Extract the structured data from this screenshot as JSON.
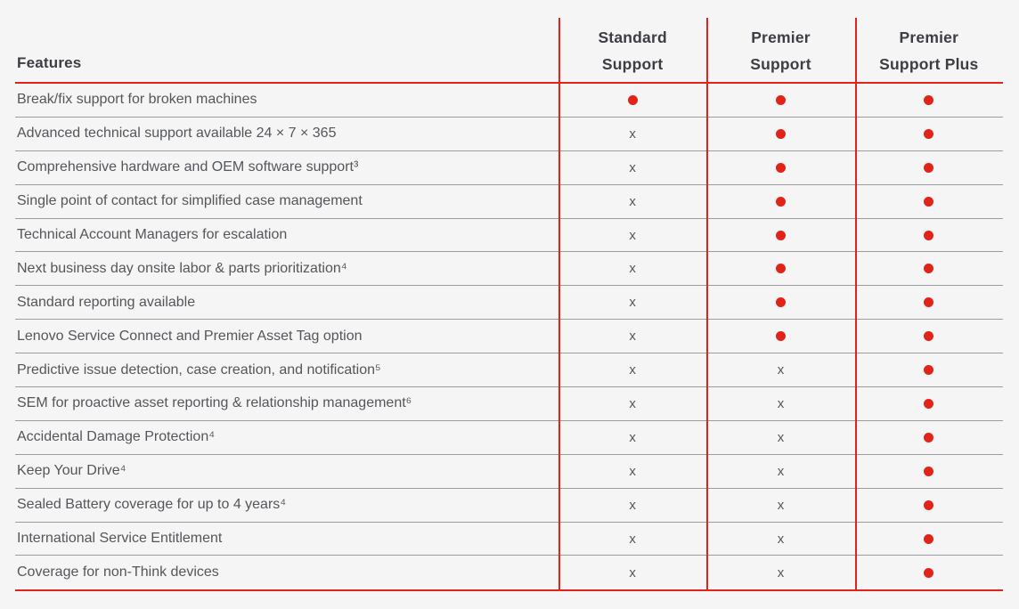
{
  "colors": {
    "brand_red": "#e2231a",
    "feature_text_gray": "#53565a",
    "header_text": "#3c3e44",
    "divider_gray": "#9b9c9f",
    "background": "#f5f5f5"
  },
  "table": {
    "features_header": "Features",
    "columns": [
      {
        "label": "Standard Support",
        "lines": [
          "Standard",
          "Support"
        ]
      },
      {
        "label": "Premier Support",
        "lines": [
          "Premier",
          "Support"
        ]
      },
      {
        "label": "Premier Support Plus",
        "lines": [
          "Premier",
          "Support Plus"
        ]
      }
    ],
    "symbols": {
      "included": "●",
      "not_included": "x"
    },
    "rows": [
      {
        "feature": "Break/fix support for broken machines",
        "values": [
          "included",
          "included",
          "included"
        ]
      },
      {
        "feature": "Advanced technical support available 24 × 7 × 365",
        "values": [
          "not_included",
          "included",
          "included"
        ]
      },
      {
        "feature": "Comprehensive hardware and OEM software support³",
        "values": [
          "not_included",
          "included",
          "included"
        ]
      },
      {
        "feature": "Single point of contact for simplified case management",
        "values": [
          "not_included",
          "included",
          "included"
        ]
      },
      {
        "feature": "Technical Account Managers for escalation",
        "values": [
          "not_included",
          "included",
          "included"
        ]
      },
      {
        "feature": "Next business day onsite labor & parts prioritization⁴",
        "values": [
          "not_included",
          "included",
          "included"
        ]
      },
      {
        "feature": "Standard reporting available",
        "values": [
          "not_included",
          "included",
          "included"
        ]
      },
      {
        "feature": "Lenovo Service Connect and Premier Asset Tag option",
        "values": [
          "not_included",
          "included",
          "included"
        ]
      },
      {
        "feature": "Predictive issue detection, case creation, and notification⁵",
        "values": [
          "not_included",
          "not_included",
          "included"
        ]
      },
      {
        "feature": "SEM for proactive asset reporting & relationship management⁶",
        "values": [
          "not_included",
          "not_included",
          "included"
        ]
      },
      {
        "feature": "Accidental Damage Protection⁴",
        "values": [
          "not_included",
          "not_included",
          "included"
        ]
      },
      {
        "feature": "Keep Your Drive⁴",
        "values": [
          "not_included",
          "not_included",
          "included"
        ]
      },
      {
        "feature": "Sealed Battery coverage for up to 4 years⁴",
        "values": [
          "not_included",
          "not_included",
          "included"
        ]
      },
      {
        "feature": "International Service Entitlement",
        "values": [
          "not_included",
          "not_included",
          "included"
        ]
      },
      {
        "feature": "Coverage for non-Think devices",
        "values": [
          "not_included",
          "not_included",
          "included"
        ]
      }
    ]
  }
}
